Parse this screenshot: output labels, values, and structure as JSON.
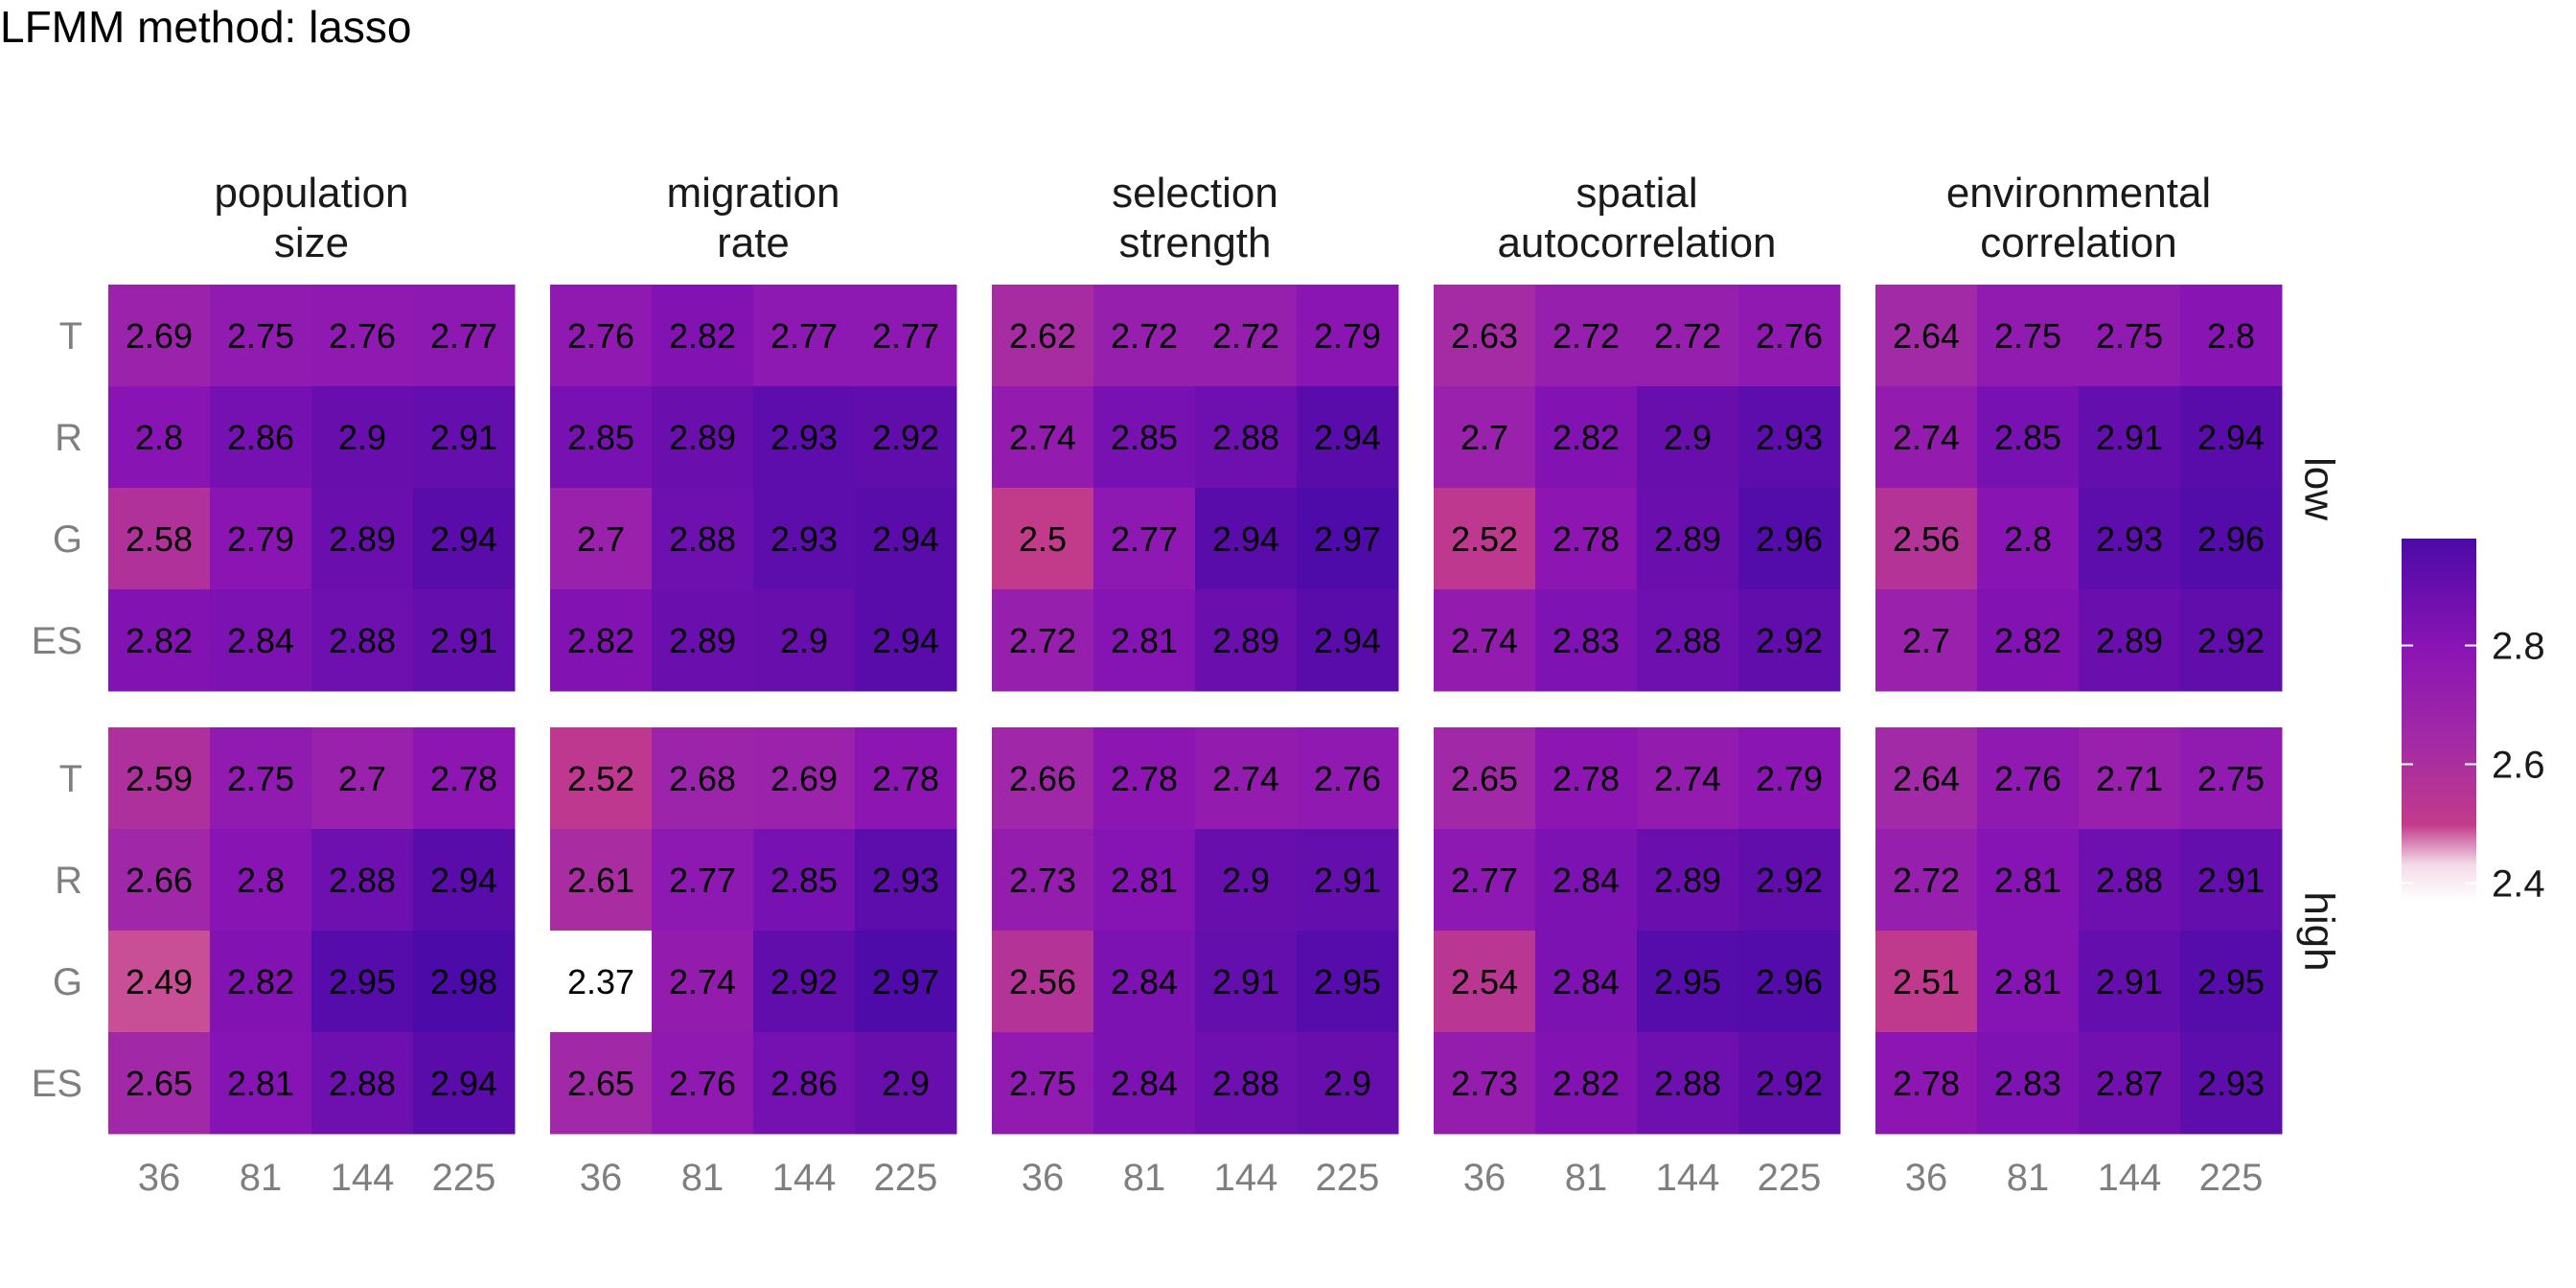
{
  "chart_data": {
    "type": "heatmap",
    "title": "LFMM method: lasso",
    "facet_columns": [
      "population\nsize",
      "migration\nrate",
      "selection\nstrength",
      "spatial\nautocorrelation",
      "environmental\ncorrelation"
    ],
    "facet_rows": [
      "low",
      "high"
    ],
    "x": [
      "36",
      "81",
      "144",
      "225"
    ],
    "y": [
      "T",
      "R",
      "G",
      "ES"
    ],
    "colorbar": {
      "ticks": [
        "2.4",
        "2.6",
        "2.8"
      ],
      "tick_values": [
        2.4,
        2.6,
        2.8
      ],
      "range": [
        2.37,
        2.98
      ]
    },
    "colors": {
      "low": "#ffffff",
      "mid": "#c23b8a",
      "mid2": "#8a14b4",
      "high": "#4c0aa8",
      "label_text": "#000000",
      "axis_text": "#7f7f7f"
    },
    "panels": {
      "low": [
        [
          [
            2.69,
            2.75,
            2.76,
            2.77
          ],
          [
            2.8,
            2.86,
            2.9,
            2.91
          ],
          [
            2.58,
            2.79,
            2.89,
            2.94
          ],
          [
            2.82,
            2.84,
            2.88,
            2.91
          ]
        ],
        [
          [
            2.76,
            2.82,
            2.77,
            2.77
          ],
          [
            2.85,
            2.89,
            2.93,
            2.92
          ],
          [
            2.7,
            2.88,
            2.93,
            2.94
          ],
          [
            2.82,
            2.89,
            2.9,
            2.94
          ]
        ],
        [
          [
            2.62,
            2.72,
            2.72,
            2.79
          ],
          [
            2.74,
            2.85,
            2.88,
            2.94
          ],
          [
            2.5,
            2.77,
            2.94,
            2.97
          ],
          [
            2.72,
            2.81,
            2.89,
            2.94
          ]
        ],
        [
          [
            2.63,
            2.72,
            2.72,
            2.76
          ],
          [
            2.7,
            2.82,
            2.9,
            2.93
          ],
          [
            2.52,
            2.78,
            2.89,
            2.96
          ],
          [
            2.74,
            2.83,
            2.88,
            2.92
          ]
        ],
        [
          [
            2.64,
            2.75,
            2.75,
            2.8
          ],
          [
            2.74,
            2.85,
            2.91,
            2.94
          ],
          [
            2.56,
            2.8,
            2.93,
            2.96
          ],
          [
            2.7,
            2.82,
            2.89,
            2.92
          ]
        ]
      ],
      "high": [
        [
          [
            2.59,
            2.75,
            2.7,
            2.78
          ],
          [
            2.66,
            2.8,
            2.88,
            2.94
          ],
          [
            2.49,
            2.82,
            2.95,
            2.98
          ],
          [
            2.65,
            2.81,
            2.88,
            2.94
          ]
        ],
        [
          [
            2.52,
            2.68,
            2.69,
            2.78
          ],
          [
            2.61,
            2.77,
            2.85,
            2.93
          ],
          [
            2.37,
            2.74,
            2.92,
            2.97
          ],
          [
            2.65,
            2.76,
            2.86,
            2.9
          ]
        ],
        [
          [
            2.66,
            2.78,
            2.74,
            2.76
          ],
          [
            2.73,
            2.81,
            2.9,
            2.91
          ],
          [
            2.56,
            2.84,
            2.91,
            2.95
          ],
          [
            2.75,
            2.84,
            2.88,
            2.9
          ]
        ],
        [
          [
            2.65,
            2.78,
            2.74,
            2.79
          ],
          [
            2.77,
            2.84,
            2.89,
            2.92
          ],
          [
            2.54,
            2.84,
            2.95,
            2.96
          ],
          [
            2.73,
            2.82,
            2.88,
            2.92
          ]
        ],
        [
          [
            2.64,
            2.76,
            2.71,
            2.75
          ],
          [
            2.72,
            2.81,
            2.88,
            2.91
          ],
          [
            2.51,
            2.81,
            2.91,
            2.95
          ],
          [
            2.78,
            2.83,
            2.87,
            2.93
          ]
        ]
      ]
    }
  }
}
